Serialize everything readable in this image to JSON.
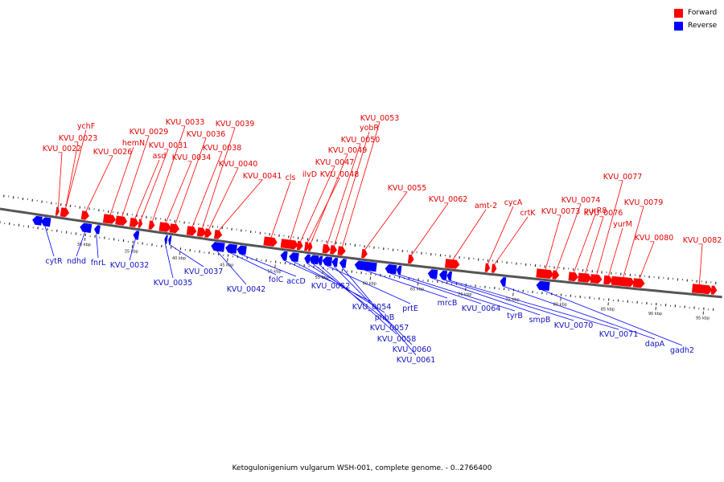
{
  "colors": {
    "forward": "#ff0000",
    "reverse": "#0000ff",
    "forward_label": "#e00000",
    "reverse_label": "#1010c0",
    "backbone": "#555555"
  },
  "legend": [
    {
      "label": "Forward",
      "color": "#ff0000"
    },
    {
      "label": "Reverse",
      "color": "#0000ff"
    }
  ],
  "caption": "Ketogulonigenium vulgarum WSH-001, complete genome. - 0..2766400",
  "kbp_ticks": [
    {
      "kbp": 30,
      "label": "30 kbp"
    },
    {
      "kbp": 35,
      "label": "35 kbp"
    },
    {
      "kbp": 40,
      "label": "40 kbp"
    },
    {
      "kbp": 45,
      "label": "45 kbp"
    },
    {
      "kbp": 50,
      "label": "50 kbp"
    },
    {
      "kbp": 55,
      "label": "55 kbp"
    },
    {
      "kbp": 60,
      "label": "60 kbp"
    },
    {
      "kbp": 65,
      "label": "65 kbp"
    },
    {
      "kbp": 70,
      "label": "70 kbp"
    },
    {
      "kbp": 75,
      "label": "75 kbp"
    },
    {
      "kbp": 80,
      "label": "80 kbp"
    },
    {
      "kbp": 85,
      "label": "85 kbp"
    },
    {
      "kbp": 90,
      "label": "90 kbp"
    },
    {
      "kbp": 95,
      "label": "95 kbp"
    }
  ],
  "forward_genes": [
    {
      "label": "KVU_0022",
      "pos": 26.6,
      "len": 0.35
    },
    {
      "label": "KVU_0023",
      "pos": 27.1,
      "len": 0.9
    },
    {
      "label": "ychF",
      "pos": 27.3
    },
    {
      "label": "KVU_0026",
      "pos": 29.3,
      "len": 0.8
    },
    {
      "label": "hemN",
      "pos": 31.6,
      "len": 1.3
    },
    {
      "label": "KVU_0029",
      "pos": 32.9,
      "len": 1.2
    },
    {
      "label": "asd",
      "pos": 34.4,
      "len": 0.9
    },
    {
      "label": "KVU_0031",
      "pos": 35.3,
      "len": 0.4
    },
    {
      "label": "KVU_0033",
      "pos": 36.4,
      "len": 0.6
    },
    {
      "label": "KVU_0034",
      "pos": 37.5,
      "len": 1.2
    },
    {
      "label": "KVU_0036",
      "pos": 38.6,
      "len": 1.0
    },
    {
      "label": "KVU_0038",
      "pos": 40.4,
      "len": 1.0
    },
    {
      "label": "KVU_0039",
      "pos": 41.5,
      "len": 0.9
    },
    {
      "label": "KVU_0040",
      "pos": 42.3,
      "len": 0.7
    },
    {
      "label": "KVU_0041",
      "pos": 43.3,
      "len": 0.8
    },
    {
      "label": "cls",
      "pos": 48.5,
      "len": 1.4
    },
    {
      "label": "ilvD",
      "pos": 50.3,
      "len": 1.8
    },
    {
      "label": "KVU_0047",
      "pos": 52.0,
      "len": 0.6
    },
    {
      "label": "KVU_0048",
      "pos": 52.8,
      "len": 0.5
    },
    {
      "label": "KVU_0049",
      "pos": 53.2,
      "len": 0.4
    },
    {
      "label": "KVU_0050",
      "pos": 54.7,
      "len": 0.8
    },
    {
      "label": "yobR",
      "pos": 55.5,
      "len": 0.7
    },
    {
      "label": "KVU_0053",
      "pos": 56.3,
      "len": 0.8
    },
    {
      "label": "KVU_0055",
      "pos": 58.8,
      "len": 0.6
    },
    {
      "label": "KVU_0062",
      "pos": 63.7,
      "len": 0.6
    },
    {
      "label": "amt-2",
      "pos": 67.6,
      "len": 1.5
    },
    {
      "label": "cycA",
      "pos": 71.8,
      "len": 0.5
    },
    {
      "label": "crtK",
      "pos": 72.5,
      "len": 0.5
    },
    {
      "label": "KVU_0073",
      "pos": 77.2,
      "len": 1.8
    },
    {
      "label": "KVU_0074",
      "pos": 78.9,
      "len": 0.7
    },
    {
      "label": "purR8",
      "pos": 80.6,
      "len": 1.0
    },
    {
      "label": "KVU_0076",
      "pos": 81.6,
      "len": 1.4
    },
    {
      "label": "KVU_0077",
      "pos": 82.9,
      "len": 1.2
    },
    {
      "label": "yurM",
      "pos": 84.3,
      "len": 0.9
    },
    {
      "label": "KVU_0079",
      "pos": 85.1,
      "len": 2.4
    },
    {
      "label": "KVU_0080",
      "pos": 87.4,
      "len": 1.2
    },
    {
      "label": "KVU_0082",
      "pos": 93.6,
      "len": 1.4
    },
    {
      "label": "",
      "pos": 94.7,
      "len": 1.0
    },
    {
      "label": "",
      "pos": 95.6,
      "len": 0.6
    }
  ],
  "reverse_genes": [
    {
      "label": "",
      "pos": 24.3,
      "len": 1.0
    },
    {
      "label": "cytR",
      "pos": 25.2,
      "len": 1.0
    },
    {
      "label": "ndhd",
      "pos": 29.3,
      "len": 1.2
    },
    {
      "label": "fnrL",
      "pos": 30.8,
      "len": 0.6
    },
    {
      "label": "KVU_0032",
      "pos": 34.9,
      "len": 0.6
    },
    {
      "label": "KVU_0035",
      "pos": 38.2,
      "len": 0.3
    },
    {
      "label": "KVU_0037",
      "pos": 38.6,
      "len": 0.3
    },
    {
      "label": "KVU_0042",
      "pos": 43.1,
      "len": 1.4
    },
    {
      "label": "folC",
      "pos": 44.6,
      "len": 1.2
    },
    {
      "label": "accD",
      "pos": 45.8,
      "len": 1.0
    },
    {
      "label": "KVU_0052",
      "pos": 50.4,
      "len": 0.7
    },
    {
      "label": "KVU_0054",
      "pos": 51.3,
      "len": 1.0
    },
    {
      "label": "phhB",
      "pos": 52.9,
      "len": 0.6
    },
    {
      "label": "KVU_0057",
      "pos": 53.4,
      "len": 1.0
    },
    {
      "label": "KVU_0058",
      "pos": 54.3,
      "len": 0.5
    },
    {
      "label": "prtE",
      "pos": 54.8,
      "len": 1.0
    },
    {
      "label": "KVU_0060",
      "pos": 55.8,
      "len": 0.6
    },
    {
      "label": "KVU_0061",
      "pos": 56.6,
      "len": 0.7
    },
    {
      "label": "mrcB",
      "pos": 58.2,
      "len": 2.3
    },
    {
      "label": "KVU_0064",
      "pos": 61.4,
      "len": 1.2
    },
    {
      "label": "tyrB",
      "pos": 62.6,
      "len": 0.5
    },
    {
      "label": "smpB",
      "pos": 65.9,
      "len": 1.0
    },
    {
      "label": "KVU_0070",
      "pos": 67.1,
      "len": 0.8
    },
    {
      "label": "KVU_0071",
      "pos": 67.9,
      "len": 0.5
    },
    {
      "label": "dapA",
      "pos": 73.5,
      "len": 0.6
    },
    {
      "label": "gadh2",
      "pos": 77.3,
      "len": 1.4
    }
  ]
}
